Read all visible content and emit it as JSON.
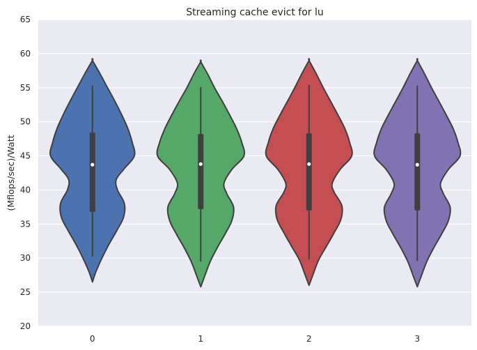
{
  "chart_data": {
    "type": "violin",
    "title": "Streaming cache evict for lu",
    "xlabel": "",
    "ylabel": "(Mflops/sec)/Watt",
    "categories": [
      "0",
      "1",
      "2",
      "3"
    ],
    "ylim": [
      20,
      65
    ],
    "yticks": [
      20,
      25,
      30,
      35,
      40,
      45,
      50,
      55,
      60,
      65
    ],
    "grid": true,
    "colors": [
      "#4c72b0",
      "#55a868",
      "#c44e52",
      "#8172b2"
    ],
    "series": [
      {
        "category": "0",
        "min": 30.2,
        "q1": 36.8,
        "median": 43.7,
        "q3": 48.4,
        "max": 55.3,
        "violin_extent": [
          26.5,
          59.0
        ],
        "density_profile": [
          [
            26.5,
            0
          ],
          [
            28,
            0.08
          ],
          [
            30,
            0.22
          ],
          [
            32,
            0.38
          ],
          [
            34,
            0.56
          ],
          [
            36,
            0.72
          ],
          [
            38,
            0.74
          ],
          [
            40,
            0.58
          ],
          [
            41.5,
            0.55
          ],
          [
            43,
            0.72
          ],
          [
            45,
            0.97
          ],
          [
            47,
            0.92
          ],
          [
            49,
            0.82
          ],
          [
            51,
            0.68
          ],
          [
            53,
            0.52
          ],
          [
            55,
            0.35
          ],
          [
            57,
            0.18
          ],
          [
            59,
            0
          ]
        ]
      },
      {
        "category": "1",
        "min": 29.5,
        "q1": 37.2,
        "median": 43.8,
        "q3": 48.2,
        "max": 55.1,
        "violin_extent": [
          25.8,
          58.8
        ],
        "density_profile": [
          [
            25.8,
            0
          ],
          [
            27.5,
            0.1
          ],
          [
            29.5,
            0.22
          ],
          [
            31.5,
            0.38
          ],
          [
            33.5,
            0.56
          ],
          [
            35.5,
            0.72
          ],
          [
            37.5,
            0.76
          ],
          [
            39.5,
            0.6
          ],
          [
            41,
            0.54
          ],
          [
            43,
            0.72
          ],
          [
            45,
            1.0
          ],
          [
            47,
            0.95
          ],
          [
            49,
            0.83
          ],
          [
            51,
            0.67
          ],
          [
            53,
            0.5
          ],
          [
            55,
            0.32
          ],
          [
            57,
            0.16
          ],
          [
            58.8,
            0
          ]
        ]
      },
      {
        "category": "2",
        "min": 29.8,
        "q1": 37.0,
        "median": 43.8,
        "q3": 48.3,
        "max": 55.4,
        "violin_extent": [
          26.0,
          59.0
        ],
        "density_profile": [
          [
            26,
            0
          ],
          [
            27.7,
            0.1
          ],
          [
            29.7,
            0.22
          ],
          [
            31.7,
            0.4
          ],
          [
            33.7,
            0.58
          ],
          [
            35.7,
            0.74
          ],
          [
            37.7,
            0.76
          ],
          [
            39.7,
            0.58
          ],
          [
            41,
            0.54
          ],
          [
            43,
            0.72
          ],
          [
            45,
            0.99
          ],
          [
            47,
            0.94
          ],
          [
            49,
            0.83
          ],
          [
            51,
            0.67
          ],
          [
            53,
            0.5
          ],
          [
            55,
            0.33
          ],
          [
            57,
            0.17
          ],
          [
            59,
            0
          ]
        ]
      },
      {
        "category": "3",
        "min": 29.6,
        "q1": 37.0,
        "median": 43.7,
        "q3": 48.3,
        "max": 55.3,
        "violin_extent": [
          25.8,
          59.0
        ],
        "density_profile": [
          [
            25.8,
            0
          ],
          [
            27.5,
            0.1
          ],
          [
            29.5,
            0.22
          ],
          [
            31.5,
            0.38
          ],
          [
            33.5,
            0.56
          ],
          [
            35.5,
            0.72
          ],
          [
            37.5,
            0.76
          ],
          [
            39.5,
            0.6
          ],
          [
            41,
            0.54
          ],
          [
            43,
            0.72
          ],
          [
            45,
            0.99
          ],
          [
            47,
            0.94
          ],
          [
            49,
            0.83
          ],
          [
            51,
            0.67
          ],
          [
            53,
            0.5
          ],
          [
            55,
            0.33
          ],
          [
            57,
            0.17
          ],
          [
            59,
            0
          ]
        ]
      }
    ]
  }
}
